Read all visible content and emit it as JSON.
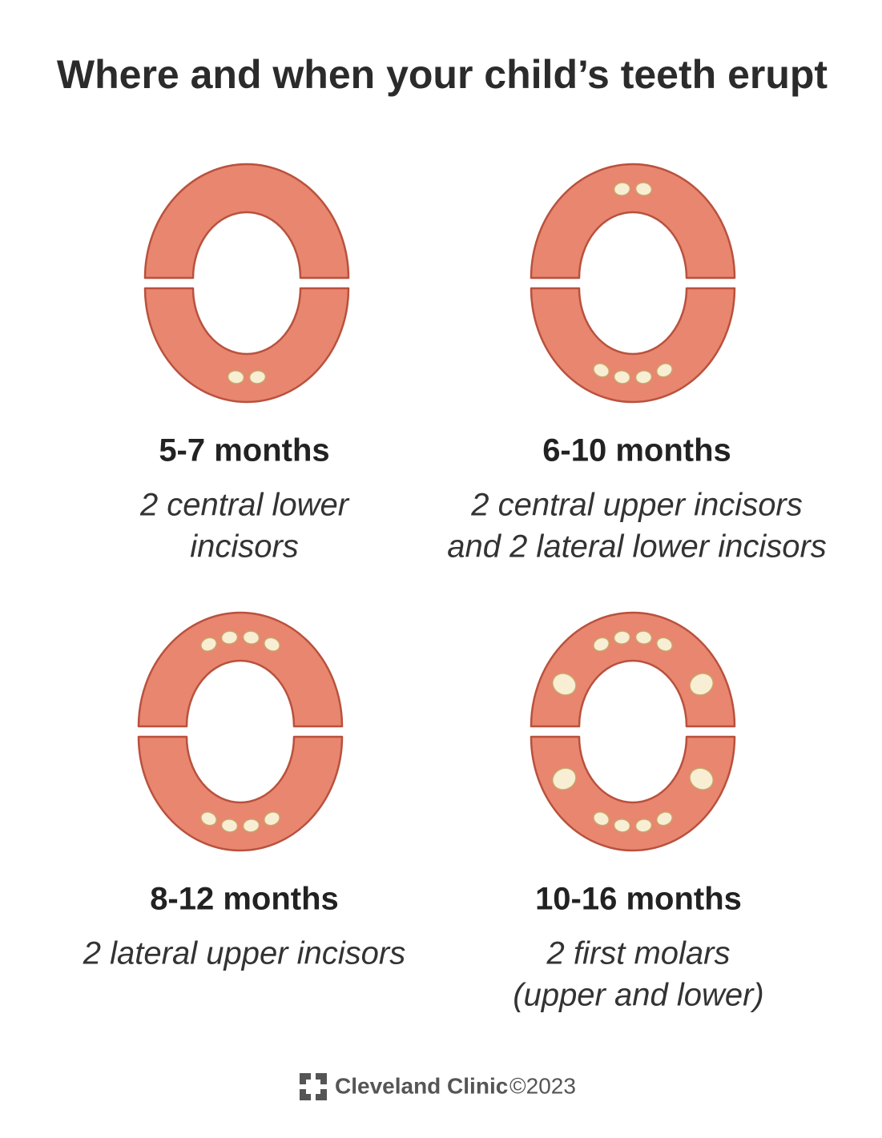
{
  "title": "Where and when your child’s teeth erupt",
  "panels": [
    {
      "age": "5-7 months",
      "description": [
        "2 central lower",
        "incisors"
      ]
    },
    {
      "age": "6-10 months",
      "description": [
        "2 central upper incisors",
        "and 2 lateral lower incisors"
      ]
    },
    {
      "age": "8-12 months",
      "description": [
        "2 lateral upper incisors"
      ]
    },
    {
      "age": "10-16 months",
      "description": [
        "2 first molars",
        "(upper and lower)"
      ]
    }
  ],
  "footer": {
    "brand": "Cleveland Clinic",
    "copyright": "©2023"
  }
}
